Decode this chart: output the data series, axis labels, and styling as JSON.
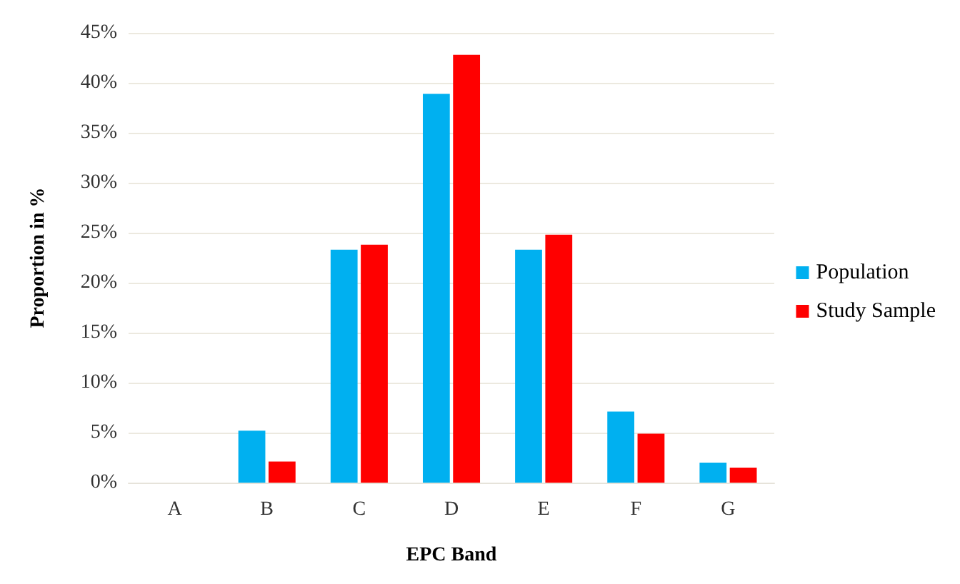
{
  "chart_data": {
    "type": "bar",
    "xlabel": "EPC Band",
    "ylabel": "Proportion in %",
    "categories": [
      "A",
      "B",
      "C",
      "D",
      "E",
      "F",
      "G"
    ],
    "series": [
      {
        "name": "Population",
        "color": "#00b0f0",
        "values": [
          0,
          5.2,
          23.3,
          38.9,
          23.3,
          7.1,
          2.0
        ]
      },
      {
        "name": "Study Sample",
        "color": "#ff0000",
        "values": [
          0,
          2.1,
          23.8,
          42.8,
          24.8,
          4.9,
          1.5
        ]
      }
    ],
    "ylim": [
      0,
      45
    ],
    "yticks": [
      {
        "value": 0,
        "label": "0%"
      },
      {
        "value": 5,
        "label": "5%"
      },
      {
        "value": 10,
        "label": "10%"
      },
      {
        "value": 15,
        "label": "15%"
      },
      {
        "value": 20,
        "label": "20%"
      },
      {
        "value": 25,
        "label": "25%"
      },
      {
        "value": 30,
        "label": "30%"
      },
      {
        "value": 35,
        "label": "35%"
      },
      {
        "value": 40,
        "label": "40%"
      },
      {
        "value": 45,
        "label": "45%"
      }
    ],
    "grid": "y",
    "legend": "right"
  }
}
